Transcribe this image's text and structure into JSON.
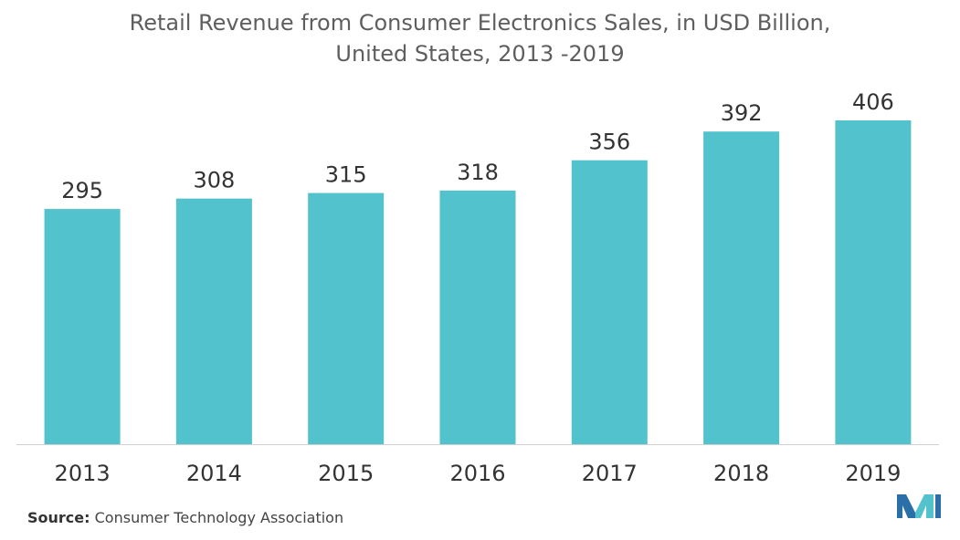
{
  "chart_data": {
    "type": "bar",
    "title": "Retail Revenue from Consumer Electronics Sales, in USD Billion,",
    "subtitle": "United States, 2013 -2019",
    "categories": [
      "2013",
      "2014",
      "2015",
      "2016",
      "2017",
      "2018",
      "2019"
    ],
    "values": [
      295,
      308,
      315,
      318,
      356,
      392,
      406
    ],
    "value_labels": [
      "295",
      "308",
      "315",
      "318",
      "356",
      "392",
      "406"
    ],
    "xlabel": "",
    "ylabel": "",
    "ylim": [
      0,
      406
    ],
    "grid": false,
    "bar_color": "#52c2cc"
  },
  "source": {
    "label": "Source:",
    "text": "Consumer Technology Association"
  },
  "logo": {
    "icon": "company-logo-icon",
    "colors": [
      "#2a6fa8",
      "#52c2cc"
    ]
  }
}
